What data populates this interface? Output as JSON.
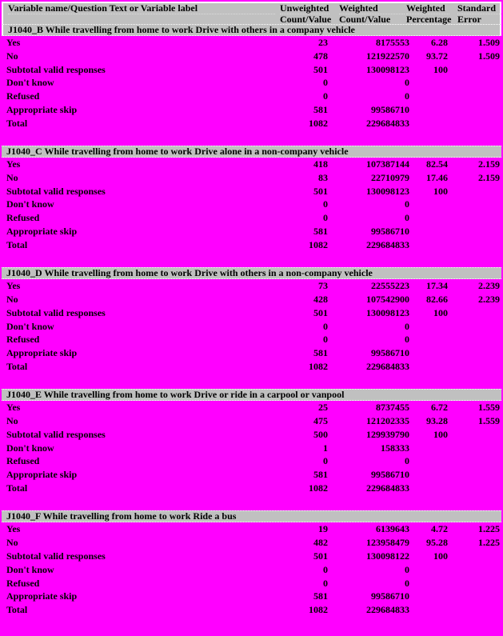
{
  "colors": {
    "page_background": "#FF00FF",
    "header_background": "#C0C0C0",
    "text": "#000000"
  },
  "table": {
    "columns": [
      {
        "line1": "Variable name/Question Text or Variable label",
        "line2": ""
      },
      {
        "line1": "Unweighted",
        "line2": "Count/Value"
      },
      {
        "line1": "Weighted",
        "line2": "Count/Value"
      },
      {
        "line1": "Weighted",
        "line2": "Percentage"
      },
      {
        "line1": "Standard",
        "line2": "Error"
      }
    ],
    "sections": [
      {
        "title": "J1040_B While travelling from home to work Drive with others in a company vehicle",
        "rows": [
          {
            "label": "Yes",
            "unweighted": "23",
            "weighted": "8175553",
            "pct": "6.28",
            "se": "1.509"
          },
          {
            "label": "No",
            "unweighted": "478",
            "weighted": "121922570",
            "pct": "93.72",
            "se": "1.509"
          },
          {
            "label": "Subtotal valid responses",
            "unweighted": "501",
            "weighted": "130098123",
            "pct": "100",
            "se": ""
          },
          {
            "label": "Don't know",
            "unweighted": "0",
            "weighted": "0",
            "pct": "",
            "se": ""
          },
          {
            "label": "Refused",
            "unweighted": "0",
            "weighted": "0",
            "pct": "",
            "se": ""
          },
          {
            "label": "Appropriate skip",
            "unweighted": "581",
            "weighted": "99586710",
            "pct": "",
            "se": ""
          },
          {
            "label": "Total",
            "unweighted": "1082",
            "weighted": "229684833",
            "pct": "",
            "se": ""
          }
        ]
      },
      {
        "title": "J1040_C While travelling from home to work Drive alone in a non-company vehicle",
        "rows": [
          {
            "label": "Yes",
            "unweighted": "418",
            "weighted": "107387144",
            "pct": "82.54",
            "se": "2.159"
          },
          {
            "label": "No",
            "unweighted": "83",
            "weighted": "22710979",
            "pct": "17.46",
            "se": "2.159"
          },
          {
            "label": "Subtotal valid responses",
            "unweighted": "501",
            "weighted": "130098123",
            "pct": "100",
            "se": ""
          },
          {
            "label": "Don't know",
            "unweighted": "0",
            "weighted": "0",
            "pct": "",
            "se": ""
          },
          {
            "label": "Refused",
            "unweighted": "0",
            "weighted": "0",
            "pct": "",
            "se": ""
          },
          {
            "label": "Appropriate skip",
            "unweighted": "581",
            "weighted": "99586710",
            "pct": "",
            "se": ""
          },
          {
            "label": "Total",
            "unweighted": "1082",
            "weighted": "229684833",
            "pct": "",
            "se": ""
          }
        ]
      },
      {
        "title": "J1040_D While travelling from home to work Drive with others in a non-company vehicle",
        "rows": [
          {
            "label": "Yes",
            "unweighted": "73",
            "weighted": "22555223",
            "pct": "17.34",
            "se": "2.239"
          },
          {
            "label": "No",
            "unweighted": "428",
            "weighted": "107542900",
            "pct": "82.66",
            "se": "2.239"
          },
          {
            "label": "Subtotal valid responses",
            "unweighted": "501",
            "weighted": "130098123",
            "pct": "100",
            "se": ""
          },
          {
            "label": "Don't know",
            "unweighted": "0",
            "weighted": "0",
            "pct": "",
            "se": ""
          },
          {
            "label": "Refused",
            "unweighted": "0",
            "weighted": "0",
            "pct": "",
            "se": ""
          },
          {
            "label": "Appropriate skip",
            "unweighted": "581",
            "weighted": "99586710",
            "pct": "",
            "se": ""
          },
          {
            "label": "Total",
            "unweighted": "1082",
            "weighted": "229684833",
            "pct": "",
            "se": ""
          }
        ]
      },
      {
        "title": "J1040_E While travelling from home to work Drive or ride in a carpool or vanpool",
        "rows": [
          {
            "label": "Yes",
            "unweighted": "25",
            "weighted": "8737455",
            "pct": "6.72",
            "se": "1.559"
          },
          {
            "label": "No",
            "unweighted": "475",
            "weighted": "121202335",
            "pct": "93.28",
            "se": "1.559"
          },
          {
            "label": "Subtotal valid responses",
            "unweighted": "500",
            "weighted": "129939790",
            "pct": "100",
            "se": ""
          },
          {
            "label": "Don't know",
            "unweighted": "1",
            "weighted": "158333",
            "pct": "",
            "se": ""
          },
          {
            "label": "Refused",
            "unweighted": "0",
            "weighted": "0",
            "pct": "",
            "se": ""
          },
          {
            "label": "Appropriate skip",
            "unweighted": "581",
            "weighted": "99586710",
            "pct": "",
            "se": ""
          },
          {
            "label": "Total",
            "unweighted": "1082",
            "weighted": "229684833",
            "pct": "",
            "se": ""
          }
        ]
      },
      {
        "title": "J1040_F While travelling from home to work Ride a bus",
        "rows": [
          {
            "label": "Yes",
            "unweighted": "19",
            "weighted": "6139643",
            "pct": "4.72",
            "se": "1.225"
          },
          {
            "label": "No",
            "unweighted": "482",
            "weighted": "123958479",
            "pct": "95.28",
            "se": "1.225"
          },
          {
            "label": "Subtotal valid responses",
            "unweighted": "501",
            "weighted": "130098122",
            "pct": "100",
            "se": ""
          },
          {
            "label": "Don't know",
            "unweighted": "0",
            "weighted": "0",
            "pct": "",
            "se": ""
          },
          {
            "label": "Refused",
            "unweighted": "0",
            "weighted": "0",
            "pct": "",
            "se": ""
          },
          {
            "label": "Appropriate skip",
            "unweighted": "581",
            "weighted": "99586710",
            "pct": "",
            "se": ""
          },
          {
            "label": "Total",
            "unweighted": "1082",
            "weighted": "229684833",
            "pct": "",
            "se": ""
          }
        ]
      }
    ]
  }
}
